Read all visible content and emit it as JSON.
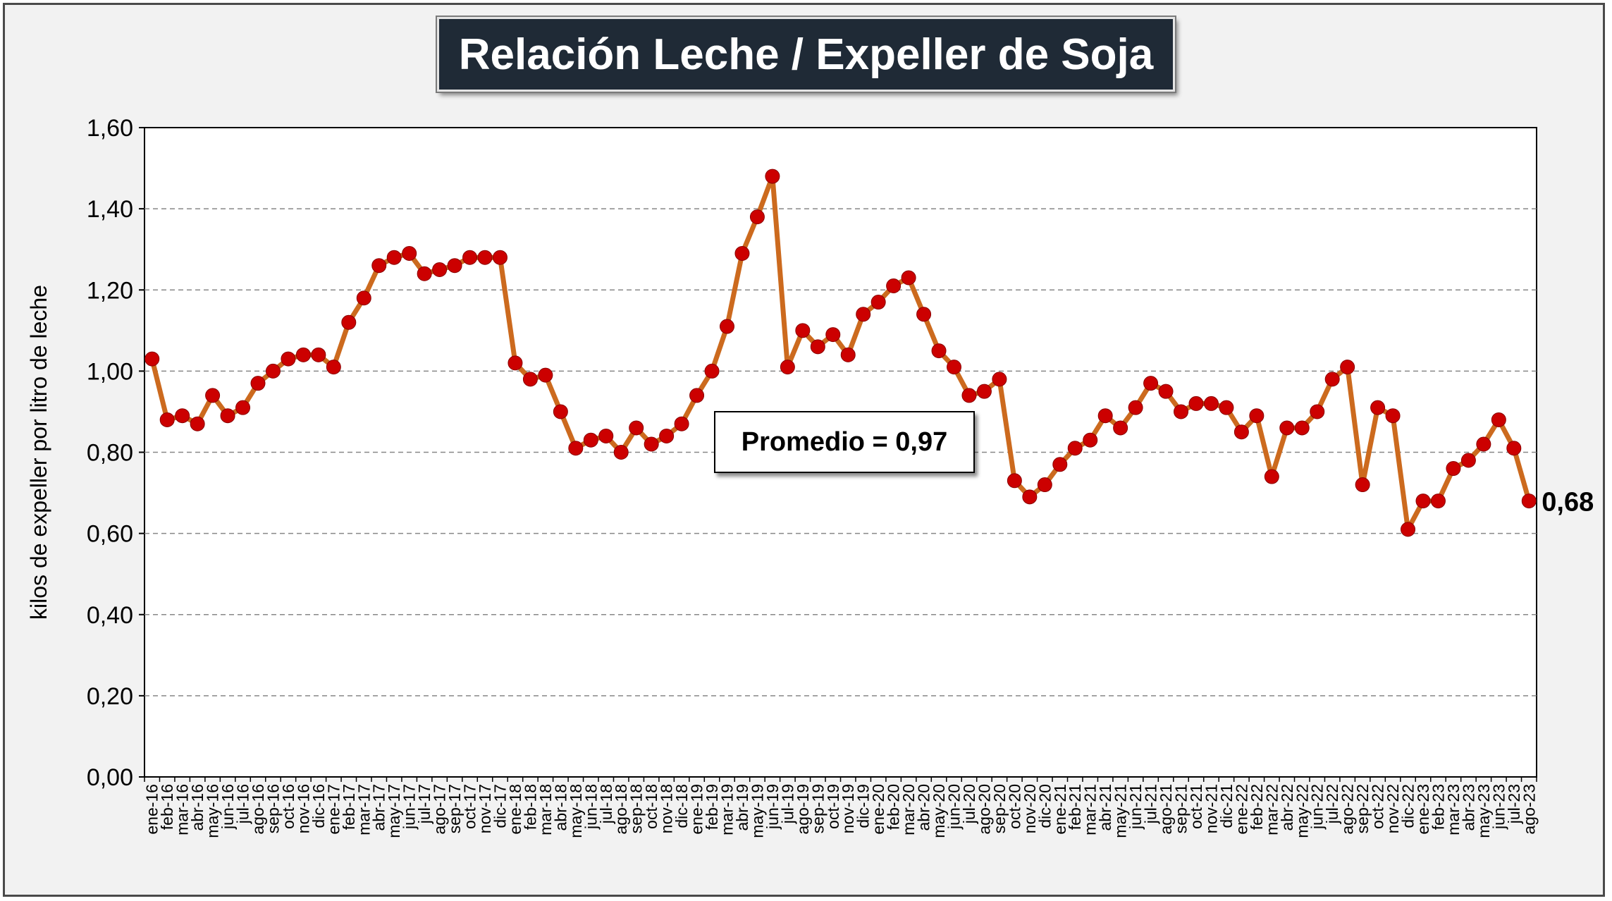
{
  "chart_data": {
    "type": "line",
    "title": "Relación Leche / Expeller de Soja",
    "ylabel": "kilos de expeller por litro de leche",
    "xlabel": "",
    "ylim": [
      0,
      1.6
    ],
    "yticks": [
      "0,00",
      "0,20",
      "0,40",
      "0,60",
      "0,80",
      "1,00",
      "1,20",
      "1,40",
      "1,60"
    ],
    "grid": "horizontal-dashed",
    "legend": "none",
    "annotation": "Promedio = 0,97",
    "last_value_label": "0,68",
    "colors": {
      "line": "#cc6a1e",
      "marker": "#cc0000",
      "plot_background": "#ffffff",
      "frame_background": "#f2f2f2",
      "title_background": "#1f2a36"
    },
    "categories": [
      "ene-16",
      "feb-16",
      "mar-16",
      "abr-16",
      "may-16",
      "jun-16",
      "jul-16",
      "ago-16",
      "sep-16",
      "oct-16",
      "nov-16",
      "dic-16",
      "ene-17",
      "feb-17",
      "mar-17",
      "abr-17",
      "may-17",
      "jun-17",
      "jul-17",
      "ago-17",
      "sep-17",
      "oct-17",
      "nov-17",
      "dic-17",
      "ene-18",
      "feb-18",
      "mar-18",
      "abr-18",
      "may-18",
      "jun-18",
      "jul-18",
      "ago-18",
      "sep-18",
      "oct-18",
      "nov-18",
      "dic-18",
      "ene-19",
      "feb-19",
      "mar-19",
      "abr-19",
      "may-19",
      "jun-19",
      "jul-19",
      "ago-19",
      "sep-19",
      "oct-19",
      "nov-19",
      "dic-19",
      "ene-20",
      "feb-20",
      "mar-20",
      "abr-20",
      "may-20",
      "jun-20",
      "jul-20",
      "ago-20",
      "sep-20",
      "oct-20",
      "nov-20",
      "dic-20",
      "ene-21",
      "feb-21",
      "mar-21",
      "abr-21",
      "may-21",
      "jun-21",
      "jul-21",
      "ago-21",
      "sep-21",
      "oct-21",
      "nov-21",
      "dic-21",
      "ene-22",
      "feb-22",
      "mar-22",
      "abr-22",
      "may-22",
      "jun-22",
      "jul-22",
      "ago-22",
      "sep-22",
      "oct-22",
      "nov-22",
      "dic-22",
      "ene-23",
      "feb-23",
      "mar-23",
      "abr-23",
      "may-23",
      "jun-23",
      "jul-23",
      "ago-23"
    ],
    "x_tick_labels": [
      "ene-16",
      "feb-16",
      "mar-16",
      "abr-16",
      "may-16",
      "jun-16",
      "jul-16",
      "ago-16",
      "sep-16",
      "oct-16",
      "nov-16",
      "dic-16",
      "ene-17",
      "feb-17",
      "mar-17",
      "abr-17",
      "may-17",
      "jun-17",
      "jul-17",
      "ago-17",
      "sep-17",
      "oct-17",
      "nov-17",
      "dic-17",
      "ene-18",
      "feb-18",
      "mar-18",
      "abr-18",
      "may-18",
      "jun-18",
      "jul-18",
      "ago-18",
      "sep-18",
      "oct-18",
      "nov-18",
      "dic-18",
      "ene-19",
      "feb-19",
      "mar-19",
      "abr-19",
      "may-19",
      "jun-19",
      "jul-19",
      "ago-19",
      "sep-19",
      "oct-19",
      "nov-19",
      "dic-19",
      "ene-20",
      "feb-20",
      "mar-20",
      "abr-20",
      "may-20",
      "jun-20",
      "jul-20",
      "ago-20",
      "sep-20",
      "oct-20",
      "nov-20",
      "dic-20",
      "ene-21",
      "feb-21",
      "mar-21",
      "abr-21",
      "may-21",
      "jun-21",
      "jul-21",
      "ago-21",
      "sep-21",
      "oct-21",
      "nov-21",
      "dic-21",
      "ene-22",
      "feb-22",
      "mar-22",
      "abr-22",
      "may-22",
      "jun-22",
      "jul-22",
      "ago-22",
      "sep-22",
      "oct-22",
      "nov-22",
      "dic-22",
      "ene-23",
      "feb-23",
      "mar-23",
      "abr-23",
      "may-23",
      "jun-23",
      "jul-23",
      "ago-23"
    ],
    "values": [
      1.03,
      0.88,
      0.89,
      0.87,
      0.94,
      0.89,
      0.91,
      0.97,
      1.0,
      1.03,
      1.04,
      1.04,
      1.01,
      1.12,
      1.18,
      1.26,
      1.28,
      1.29,
      1.24,
      1.25,
      1.26,
      1.28,
      1.28,
      1.28,
      1.02,
      0.98,
      0.99,
      0.9,
      0.81,
      0.83,
      0.84,
      0.8,
      0.86,
      0.82,
      0.84,
      0.87,
      0.94,
      1.0,
      1.11,
      1.29,
      1.38,
      1.48,
      1.01,
      1.1,
      1.06,
      1.09,
      1.04,
      1.14,
      1.17,
      1.21,
      1.23,
      1.14,
      1.05,
      1.01,
      0.94,
      0.95,
      0.98,
      0.73,
      0.69,
      0.72,
      0.77,
      0.81,
      0.83,
      0.89,
      0.86,
      0.91,
      0.97,
      0.95,
      0.9,
      0.92,
      0.92,
      0.91,
      0.85,
      0.89,
      0.74,
      0.86,
      0.86,
      0.9,
      0.98,
      1.01,
      0.72,
      0.91,
      0.89,
      0.61,
      0.68,
      0.68,
      0.76,
      0.78,
      0.82,
      0.88,
      0.81,
      0.68
    ]
  }
}
